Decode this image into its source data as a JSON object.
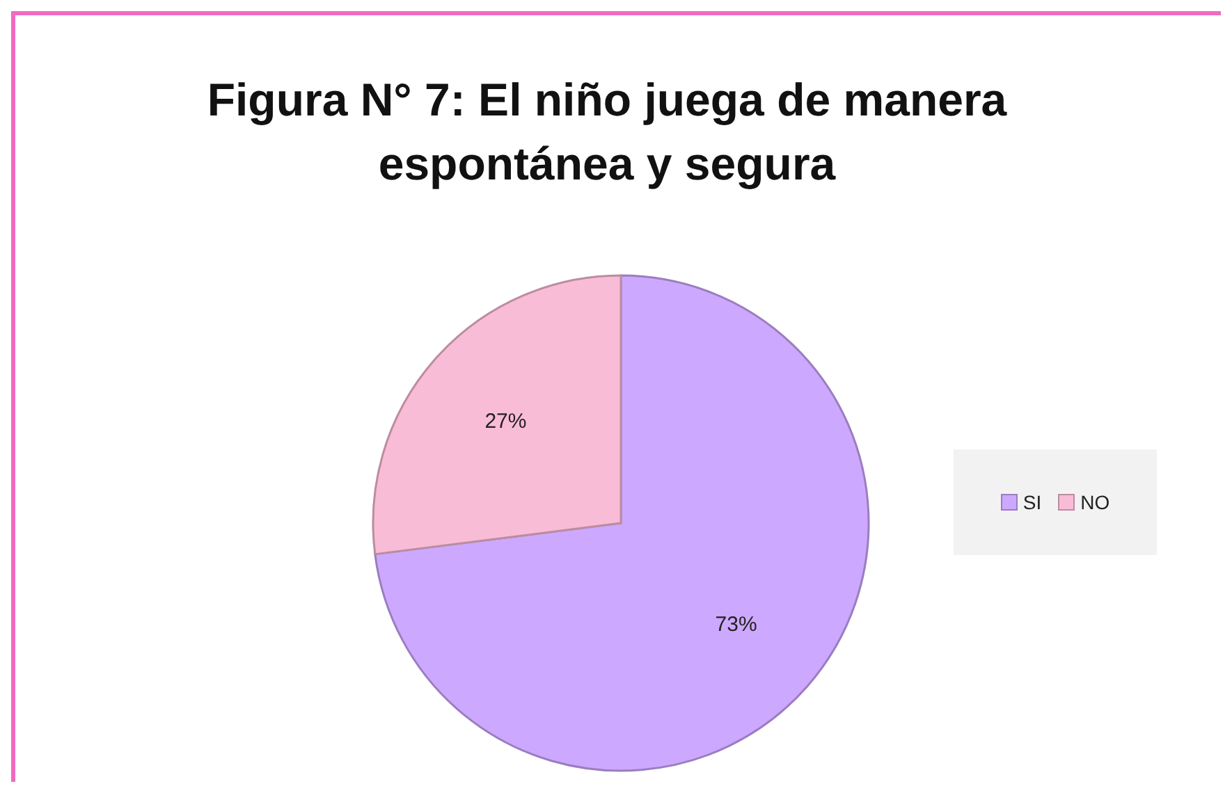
{
  "chart_data": {
    "type": "pie",
    "title": "Figura N° 7: El niño juega de manera espontánea  y segura",
    "categories": [
      "SI",
      "NO"
    ],
    "values": [
      73,
      27
    ],
    "colors": [
      "#cda8ff",
      "#f9bcd6"
    ],
    "value_labels": [
      "73%",
      "27%"
    ],
    "legend": "right"
  }
}
